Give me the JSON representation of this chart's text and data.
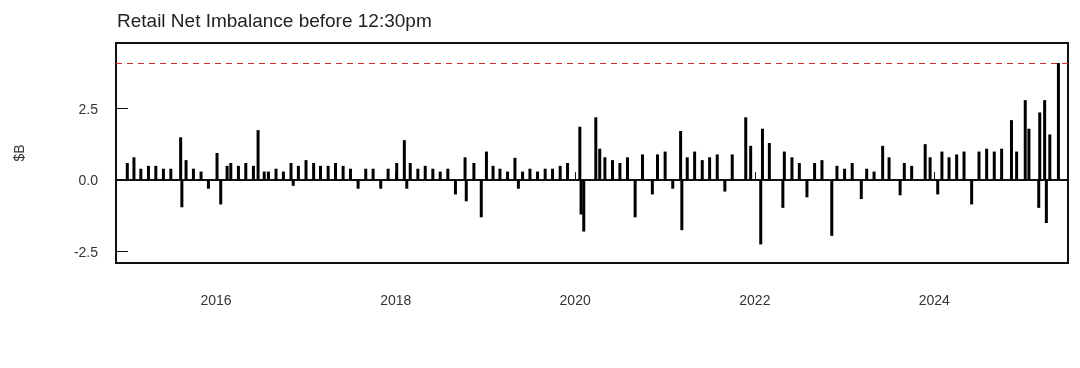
{
  "chart_data": {
    "type": "bar",
    "title": "Retail Net Imbalance before 12:30pm",
    "ylabel": "$B",
    "x": [
      "2015-01-05",
      "2015-02-01",
      "2015-03-01",
      "2015-04-01",
      "2015-05-01",
      "2015-06-01",
      "2015-07-01",
      "2015-08-10",
      "2015-08-15",
      "2015-09-01",
      "2015-10-01",
      "2015-11-01",
      "2015-12-01",
      "2016-01-05",
      "2016-01-20",
      "2016-02-15",
      "2016-03-01",
      "2016-04-01",
      "2016-05-01",
      "2016-06-01",
      "2016-06-20",
      "2016-07-15",
      "2016-08-01",
      "2016-09-01",
      "2016-10-01",
      "2016-11-01",
      "2016-11-10",
      "2016-12-01",
      "2017-01-01",
      "2017-02-01",
      "2017-03-01",
      "2017-04-01",
      "2017-05-01",
      "2017-06-01",
      "2017-07-01",
      "2017-08-01",
      "2017-09-01",
      "2017-10-01",
      "2017-11-01",
      "2017-12-01",
      "2018-01-05",
      "2018-02-05",
      "2018-02-15",
      "2018-03-01",
      "2018-04-01",
      "2018-05-01",
      "2018-06-01",
      "2018-07-01",
      "2018-08-01",
      "2018-09-01",
      "2018-10-10",
      "2018-10-15",
      "2018-11-15",
      "2018-12-15",
      "2019-01-05",
      "2019-02-01",
      "2019-03-01",
      "2019-04-01",
      "2019-05-01",
      "2019-05-15",
      "2019-06-01",
      "2019-07-01",
      "2019-08-01",
      "2019-09-01",
      "2019-10-01",
      "2019-11-01",
      "2019-12-01",
      "2020-01-20",
      "2020-01-25",
      "2020-02-05",
      "2020-03-25",
      "2020-04-10",
      "2020-05-01",
      "2020-06-01",
      "2020-07-01",
      "2020-08-01",
      "2020-09-01",
      "2020-10-01",
      "2020-11-10",
      "2020-12-01",
      "2021-01-01",
      "2021-02-01",
      "2021-03-05",
      "2021-03-10",
      "2021-04-01",
      "2021-05-01",
      "2021-06-01",
      "2021-07-01",
      "2021-08-01",
      "2021-09-01",
      "2021-10-01",
      "2021-11-25",
      "2021-12-15",
      "2022-01-25",
      "2022-02-01",
      "2022-03-01",
      "2022-04-25",
      "2022-05-01",
      "2022-06-01",
      "2022-07-01",
      "2022-08-01",
      "2022-09-01",
      "2022-10-01",
      "2022-11-10",
      "2022-12-01",
      "2023-01-01",
      "2023-02-01",
      "2023-03-10",
      "2023-04-01",
      "2023-05-01",
      "2023-06-05",
      "2023-07-01",
      "2023-08-15",
      "2023-09-01",
      "2023-10-01",
      "2023-11-25",
      "2023-12-15",
      "2024-01-15",
      "2024-02-01",
      "2024-03-01",
      "2024-04-01",
      "2024-05-01",
      "2024-06-01",
      "2024-07-01",
      "2024-08-01",
      "2024-09-01",
      "2024-10-01",
      "2024-11-10",
      "2024-12-01",
      "2025-01-05",
      "2025-01-20",
      "2025-03-01",
      "2025-03-05",
      "2025-03-25",
      "2025-04-01",
      "2025-04-15",
      "2025-05-20"
    ],
    "values": [
      0.6,
      0.8,
      0.4,
      0.5,
      0.5,
      0.4,
      0.4,
      1.5,
      -0.95,
      0.7,
      0.4,
      0.3,
      -0.3,
      0.95,
      -0.85,
      0.5,
      0.6,
      0.5,
      0.6,
      0.5,
      1.75,
      0.3,
      0.3,
      0.4,
      0.3,
      0.6,
      -0.2,
      0.5,
      0.7,
      0.6,
      0.5,
      0.5,
      0.6,
      0.5,
      0.4,
      -0.3,
      0.4,
      0.4,
      -0.3,
      0.4,
      0.6,
      1.4,
      -0.3,
      0.6,
      0.4,
      0.5,
      0.4,
      0.3,
      0.4,
      -0.5,
      0.8,
      -0.74,
      0.6,
      -1.3,
      1.0,
      0.5,
      0.4,
      0.3,
      0.78,
      -0.3,
      0.3,
      0.4,
      0.3,
      0.4,
      0.4,
      0.5,
      0.6,
      1.87,
      -1.2,
      -1.8,
      2.2,
      1.1,
      0.8,
      0.7,
      0.6,
      0.8,
      -1.3,
      0.9,
      -0.5,
      0.9,
      1.0,
      -0.3,
      1.72,
      -1.75,
      0.8,
      1.0,
      0.7,
      0.8,
      0.9,
      -0.4,
      0.9,
      2.2,
      1.2,
      -2.25,
      1.8,
      1.3,
      -0.97,
      1.0,
      0.8,
      0.6,
      -0.6,
      0.6,
      0.7,
      -1.95,
      0.5,
      0.4,
      0.6,
      -0.66,
      0.4,
      0.3,
      1.2,
      0.8,
      -0.53,
      0.6,
      0.5,
      1.26,
      0.8,
      -0.5,
      1.0,
      0.8,
      0.9,
      1.0,
      -0.85,
      1.0,
      1.1,
      1.0,
      1.1,
      2.1,
      1.0,
      2.8,
      1.8,
      -0.97,
      2.37,
      2.8,
      -1.5,
      1.6,
      4.1
    ],
    "color": "#000000",
    "xlim": [
      "2014-11-20",
      "2025-06-28"
    ],
    "xticks": [
      "2016",
      "2018",
      "2020",
      "2022",
      "2024"
    ],
    "ylim": [
      -2.9,
      4.8
    ],
    "yticks": [
      {
        "value": -2.5,
        "label": "-2.5"
      },
      {
        "value": 0,
        "label": "0.0"
      },
      {
        "value": 2.5,
        "label": "2.5"
      }
    ],
    "ref_lines": [
      {
        "axis": "y",
        "value": 4.1,
        "color": "#cc3333",
        "line_style": "dashed"
      }
    ]
  }
}
